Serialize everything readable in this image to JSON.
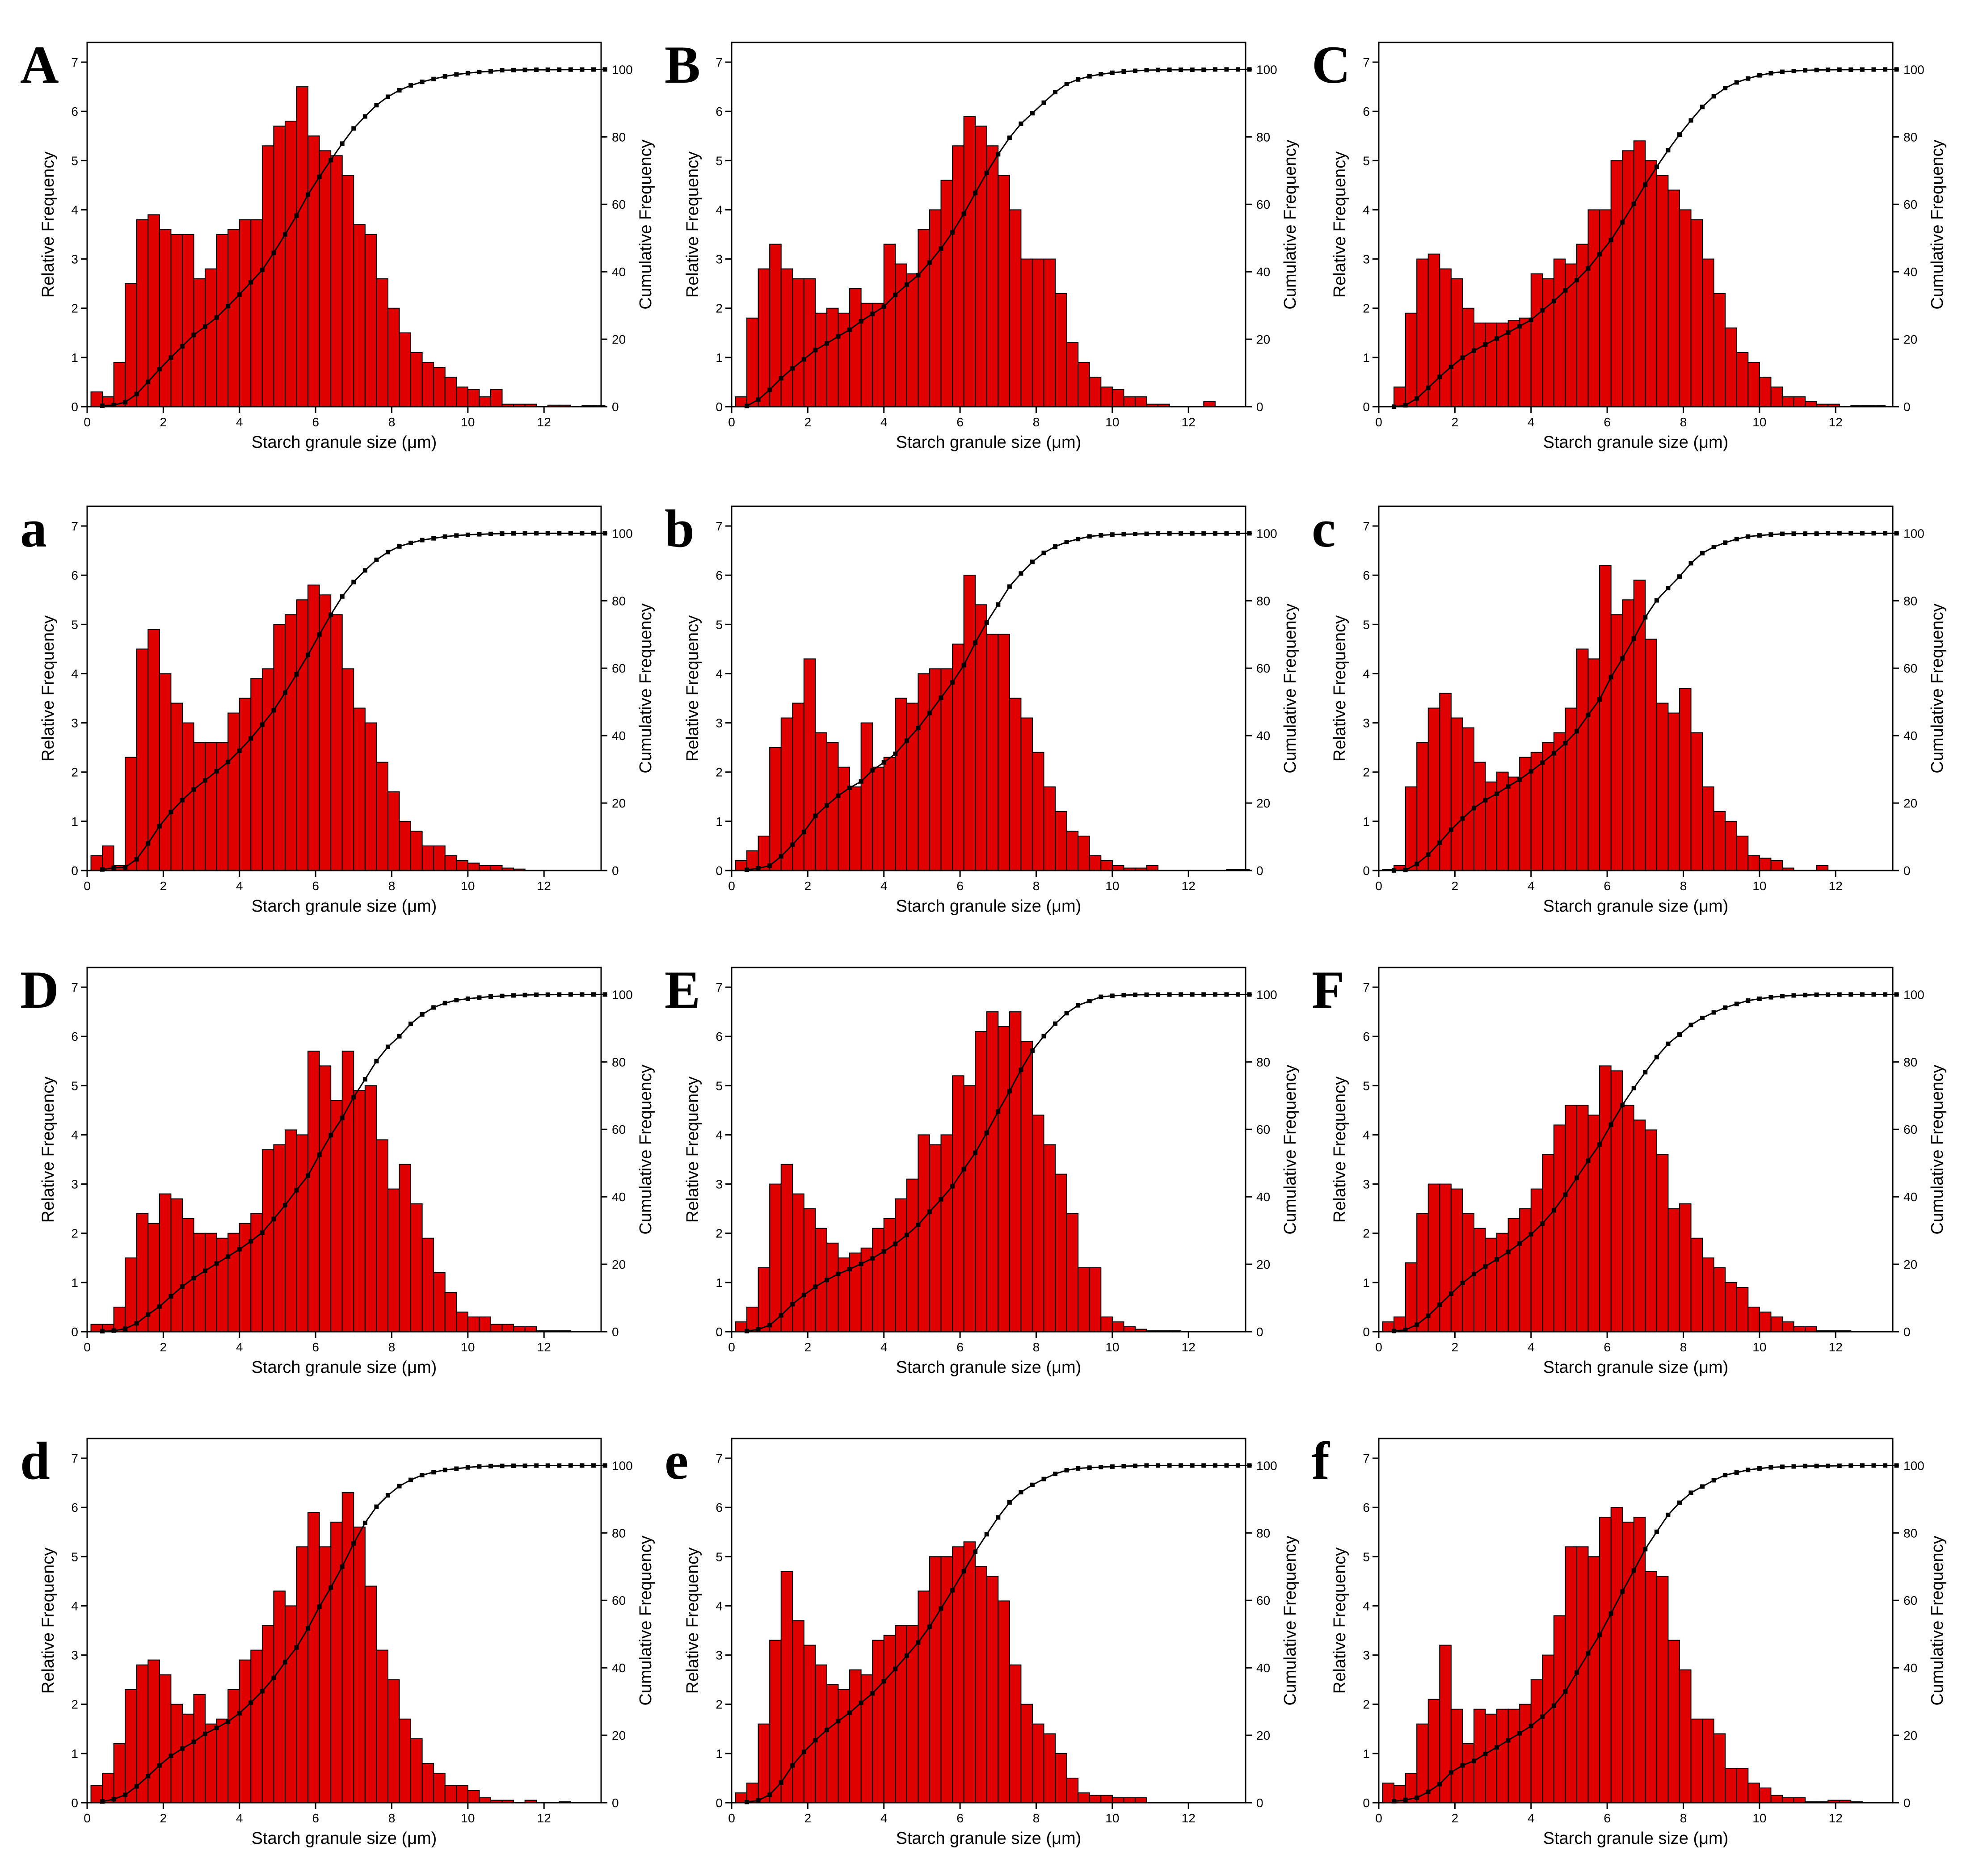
{
  "figure": {
    "x_axis_label": "Starch granule size (μm)",
    "y_left_label": "Relative Frequency",
    "y_right_label": "Cumulative Frequency",
    "colors": {
      "bar_fill": "#e00000",
      "bar_stroke": "#000000",
      "line": "#000000",
      "marker": "#000000"
    }
  },
  "chart_data": [
    {
      "panel": "A",
      "type": "bar",
      "x_ticks": [
        0,
        2,
        4,
        6,
        8,
        10,
        12
      ],
      "y_ticks": [
        0,
        1,
        2,
        3,
        4,
        5,
        6,
        7
      ],
      "y2_ticks": [
        0,
        20,
        40,
        60,
        80,
        100
      ],
      "xlim": [
        0,
        13.5
      ],
      "ylim": [
        0,
        7.4
      ],
      "y2lim": [
        0,
        108
      ],
      "bin_start": 0.1,
      "bin_width": 0.3,
      "values": [
        0.3,
        0.2,
        0.9,
        2.5,
        3.8,
        3.9,
        3.6,
        3.5,
        3.5,
        2.6,
        2.8,
        3.5,
        3.6,
        3.8,
        3.8,
        5.3,
        5.7,
        5.8,
        6.5,
        5.5,
        5.2,
        5.1,
        4.7,
        3.7,
        3.5,
        2.6,
        2.0,
        1.5,
        1.1,
        0.9,
        0.8,
        0.6,
        0.4,
        0.35,
        0.2,
        0.35,
        0.05,
        0.05,
        0.05,
        0,
        0.03,
        0.03,
        0,
        0.02,
        0.02
      ],
      "cumulative_end": 100
    },
    {
      "panel": "B",
      "type": "bar",
      "x_ticks": [
        0,
        2,
        4,
        6,
        8,
        10,
        12
      ],
      "y_ticks": [
        0,
        1,
        2,
        3,
        4,
        5,
        6,
        7
      ],
      "y2_ticks": [
        0,
        20,
        40,
        60,
        80,
        100
      ],
      "xlim": [
        0,
        13.5
      ],
      "ylim": [
        0,
        7.4
      ],
      "y2lim": [
        0,
        108
      ],
      "bin_start": 0.1,
      "bin_width": 0.3,
      "values": [
        0.2,
        1.8,
        2.8,
        3.3,
        2.8,
        2.6,
        2.6,
        1.9,
        2.0,
        1.9,
        2.4,
        2.1,
        2.1,
        3.3,
        2.9,
        2.7,
        3.6,
        4.0,
        4.6,
        5.3,
        5.9,
        5.7,
        5.3,
        4.7,
        4.0,
        3.0,
        3.0,
        3.0,
        2.3,
        1.3,
        0.9,
        0.6,
        0.4,
        0.35,
        0.2,
        0.2,
        0.05,
        0.05,
        0,
        0,
        0,
        0.1,
        0,
        0,
        0
      ],
      "cumulative_end": 100
    },
    {
      "panel": "C",
      "type": "bar",
      "x_ticks": [
        0,
        2,
        4,
        6,
        8,
        10,
        12
      ],
      "y_ticks": [
        0,
        1,
        2,
        3,
        4,
        5,
        6,
        7
      ],
      "y2_ticks": [
        0,
        20,
        40,
        60,
        80,
        100
      ],
      "xlim": [
        0,
        13.5
      ],
      "ylim": [
        0,
        7.4
      ],
      "y2lim": [
        0,
        108
      ],
      "bin_start": 0.1,
      "bin_width": 0.3,
      "values": [
        0,
        0.4,
        1.9,
        3.0,
        3.1,
        2.8,
        2.6,
        2.0,
        1.7,
        1.7,
        1.7,
        1.75,
        1.8,
        2.7,
        2.6,
        3.0,
        2.9,
        3.3,
        4.0,
        4.0,
        5.0,
        5.2,
        5.4,
        5.0,
        4.7,
        4.4,
        4.0,
        3.8,
        3.0,
        2.3,
        1.6,
        1.1,
        0.9,
        0.6,
        0.4,
        0.2,
        0.2,
        0.1,
        0.05,
        0.05,
        0,
        0.02,
        0.02,
        0.02,
        0
      ],
      "cumulative_end": 100
    },
    {
      "panel": "a",
      "type": "bar",
      "x_ticks": [
        0,
        2,
        4,
        6,
        8,
        10,
        12
      ],
      "y_ticks": [
        0,
        1,
        2,
        3,
        4,
        5,
        6,
        7
      ],
      "y2_ticks": [
        0,
        20,
        40,
        60,
        80,
        100
      ],
      "xlim": [
        0,
        13.5
      ],
      "ylim": [
        0,
        7.4
      ],
      "y2lim": [
        0,
        108
      ],
      "bin_start": 0.1,
      "bin_width": 0.3,
      "values": [
        0.3,
        0.5,
        0.1,
        2.3,
        4.5,
        4.9,
        4.0,
        3.4,
        3.0,
        2.6,
        2.6,
        2.6,
        3.2,
        3.5,
        3.9,
        4.1,
        5.0,
        5.2,
        5.5,
        5.8,
        5.6,
        5.2,
        4.1,
        3.3,
        3.0,
        2.2,
        1.6,
        1.0,
        0.8,
        0.5,
        0.5,
        0.3,
        0.2,
        0.15,
        0.1,
        0.1,
        0.05,
        0.03,
        0,
        0,
        0,
        0,
        0,
        0,
        0
      ],
      "cumulative_end": 100
    },
    {
      "panel": "b",
      "type": "bar",
      "x_ticks": [
        0,
        2,
        4,
        6,
        8,
        10,
        12
      ],
      "y_ticks": [
        0,
        1,
        2,
        3,
        4,
        5,
        6,
        7
      ],
      "y2_ticks": [
        0,
        20,
        40,
        60,
        80,
        100
      ],
      "xlim": [
        0,
        13.5
      ],
      "ylim": [
        0,
        7.4
      ],
      "y2lim": [
        0,
        108
      ],
      "bin_start": 0.1,
      "bin_width": 0.3,
      "values": [
        0.2,
        0.4,
        0.7,
        2.5,
        3.1,
        3.4,
        4.3,
        2.8,
        2.6,
        2.1,
        1.7,
        3.0,
        2.1,
        2.3,
        3.5,
        3.4,
        4.0,
        4.1,
        4.1,
        4.6,
        6.0,
        5.4,
        4.8,
        4.8,
        3.5,
        3.1,
        2.4,
        1.7,
        1.2,
        0.8,
        0.7,
        0.3,
        0.2,
        0.1,
        0.05,
        0.05,
        0.1,
        0,
        0,
        0,
        0,
        0,
        0,
        0.02,
        0.02
      ],
      "cumulative_end": 100
    },
    {
      "panel": "c",
      "type": "bar",
      "x_ticks": [
        0,
        2,
        4,
        6,
        8,
        10,
        12
      ],
      "y_ticks": [
        0,
        1,
        2,
        3,
        4,
        5,
        6,
        7
      ],
      "y2_ticks": [
        0,
        20,
        40,
        60,
        80,
        100
      ],
      "xlim": [
        0,
        13.5
      ],
      "ylim": [
        0,
        7.4
      ],
      "y2lim": [
        0,
        108
      ],
      "bin_start": 0.1,
      "bin_width": 0.3,
      "values": [
        0.02,
        0.1,
        1.7,
        2.6,
        3.3,
        3.6,
        3.1,
        2.9,
        2.2,
        1.8,
        2.0,
        1.9,
        2.3,
        2.4,
        2.6,
        2.8,
        3.3,
        4.5,
        4.3,
        6.2,
        5.2,
        5.5,
        5.9,
        4.7,
        3.4,
        3.2,
        3.7,
        2.8,
        1.7,
        1.2,
        1.0,
        0.7,
        0.3,
        0.25,
        0.2,
        0.05,
        0,
        0,
        0.1,
        0,
        0,
        0,
        0,
        0,
        0
      ],
      "cumulative_end": 100
    },
    {
      "panel": "D",
      "type": "bar",
      "x_ticks": [
        0,
        2,
        4,
        6,
        8,
        10,
        12
      ],
      "y_ticks": [
        0,
        1,
        2,
        3,
        4,
        5,
        6,
        7
      ],
      "y2_ticks": [
        0,
        20,
        40,
        60,
        80,
        100
      ],
      "xlim": [
        0,
        13.5
      ],
      "ylim": [
        0,
        7.4
      ],
      "y2lim": [
        0,
        108
      ],
      "bin_start": 0.1,
      "bin_width": 0.3,
      "values": [
        0.15,
        0.15,
        0.5,
        1.5,
        2.4,
        2.2,
        2.8,
        2.7,
        2.3,
        2.0,
        2.0,
        1.9,
        2.0,
        2.2,
        2.4,
        3.7,
        3.8,
        4.1,
        4.0,
        5.7,
        5.4,
        4.7,
        5.7,
        4.9,
        5.0,
        3.9,
        2.9,
        3.4,
        2.6,
        1.9,
        1.2,
        0.8,
        0.4,
        0.3,
        0.3,
        0.15,
        0.15,
        0.1,
        0.1,
        0.02,
        0.02,
        0.02,
        0,
        0,
        0
      ],
      "cumulative_end": 100
    },
    {
      "panel": "E",
      "type": "bar",
      "x_ticks": [
        0,
        2,
        4,
        6,
        8,
        10,
        12
      ],
      "y_ticks": [
        0,
        1,
        2,
        3,
        4,
        5,
        6,
        7
      ],
      "y2_ticks": [
        0,
        20,
        40,
        60,
        80,
        100
      ],
      "xlim": [
        0,
        13.5
      ],
      "ylim": [
        0,
        7.4
      ],
      "y2lim": [
        0,
        108
      ],
      "bin_start": 0.1,
      "bin_width": 0.3,
      "values": [
        0.2,
        0.5,
        1.3,
        3.0,
        3.4,
        2.8,
        2.5,
        2.1,
        1.8,
        1.5,
        1.6,
        1.7,
        2.1,
        2.3,
        2.7,
        3.1,
        4.0,
        3.8,
        4.0,
        5.2,
        5.0,
        6.1,
        6.5,
        6.2,
        6.5,
        5.9,
        4.4,
        3.8,
        3.2,
        2.4,
        1.3,
        1.3,
        0.3,
        0.2,
        0.1,
        0.05,
        0.02,
        0.02,
        0.02,
        0,
        0,
        0,
        0,
        0,
        0
      ],
      "cumulative_end": 100
    },
    {
      "panel": "F",
      "type": "bar",
      "x_ticks": [
        0,
        2,
        4,
        6,
        8,
        10,
        12
      ],
      "y_ticks": [
        0,
        1,
        2,
        3,
        4,
        5,
        6,
        7
      ],
      "y2_ticks": [
        0,
        20,
        40,
        60,
        80,
        100
      ],
      "xlim": [
        0,
        13.5
      ],
      "ylim": [
        0,
        7.4
      ],
      "y2lim": [
        0,
        108
      ],
      "bin_start": 0.1,
      "bin_width": 0.3,
      "values": [
        0.2,
        0.3,
        1.4,
        2.4,
        3.0,
        3.0,
        2.9,
        2.4,
        2.1,
        1.9,
        2.0,
        2.3,
        2.5,
        2.9,
        3.6,
        4.2,
        4.6,
        4.6,
        4.4,
        5.4,
        5.3,
        4.6,
        4.3,
        4.1,
        3.6,
        2.5,
        2.6,
        1.9,
        1.5,
        1.3,
        1.0,
        0.9,
        0.5,
        0.4,
        0.3,
        0.2,
        0.1,
        0.1,
        0.02,
        0.02,
        0.02,
        0,
        0,
        0,
        0
      ],
      "cumulative_end": 100
    },
    {
      "panel": "d",
      "type": "bar",
      "x_ticks": [
        0,
        2,
        4,
        6,
        8,
        10,
        12
      ],
      "y_ticks": [
        0,
        1,
        2,
        3,
        4,
        5,
        6,
        7
      ],
      "y2_ticks": [
        0,
        20,
        40,
        60,
        80,
        100
      ],
      "xlim": [
        0,
        13.5
      ],
      "ylim": [
        0,
        7.4
      ],
      "y2lim": [
        0,
        108
      ],
      "bin_start": 0.1,
      "bin_width": 0.3,
      "values": [
        0.35,
        0.6,
        1.2,
        2.3,
        2.8,
        2.9,
        2.6,
        2.0,
        1.8,
        2.2,
        1.6,
        1.7,
        2.3,
        2.9,
        3.1,
        3.6,
        4.3,
        4.0,
        5.2,
        5.9,
        5.2,
        5.7,
        6.3,
        5.6,
        4.4,
        3.1,
        2.5,
        1.7,
        1.3,
        0.8,
        0.6,
        0.35,
        0.35,
        0.25,
        0.1,
        0.05,
        0.05,
        0,
        0.05,
        0,
        0,
        0.02,
        0,
        0,
        0
      ],
      "cumulative_end": 100
    },
    {
      "panel": "e",
      "type": "bar",
      "x_ticks": [
        0,
        2,
        4,
        6,
        8,
        10,
        12
      ],
      "y_ticks": [
        0,
        1,
        2,
        3,
        4,
        5,
        6,
        7
      ],
      "y2_ticks": [
        0,
        20,
        40,
        60,
        80,
        100
      ],
      "xlim": [
        0,
        13.5
      ],
      "ylim": [
        0,
        7.4
      ],
      "y2lim": [
        0,
        108
      ],
      "bin_start": 0.1,
      "bin_width": 0.3,
      "values": [
        0.2,
        0.4,
        1.6,
        3.3,
        4.7,
        3.7,
        3.2,
        2.8,
        2.4,
        2.3,
        2.7,
        2.6,
        3.3,
        3.4,
        3.6,
        3.6,
        4.3,
        5.0,
        5.0,
        5.2,
        5.3,
        4.8,
        4.6,
        4.1,
        2.8,
        2.0,
        1.6,
        1.4,
        1.0,
        0.5,
        0.2,
        0.15,
        0.15,
        0.1,
        0.1,
        0.1,
        0,
        0,
        0,
        0,
        0,
        0,
        0,
        0,
        0
      ],
      "cumulative_end": 100
    },
    {
      "panel": "f",
      "type": "bar",
      "x_ticks": [
        0,
        2,
        4,
        6,
        8,
        10,
        12
      ],
      "y_ticks": [
        0,
        1,
        2,
        3,
        4,
        5,
        6,
        7
      ],
      "y2_ticks": [
        0,
        20,
        40,
        60,
        80,
        100
      ],
      "xlim": [
        0,
        13.5
      ],
      "ylim": [
        0,
        7.4
      ],
      "y2lim": [
        0,
        108
      ],
      "bin_start": 0.1,
      "bin_width": 0.3,
      "values": [
        0.4,
        0.35,
        0.6,
        1.6,
        2.1,
        3.2,
        1.9,
        1.2,
        1.9,
        1.8,
        1.9,
        1.9,
        2.0,
        2.5,
        3.0,
        3.8,
        5.2,
        5.2,
        5.0,
        5.8,
        6.0,
        5.7,
        5.8,
        4.7,
        4.6,
        3.3,
        2.7,
        1.7,
        1.7,
        1.4,
        0.7,
        0.7,
        0.4,
        0.3,
        0.15,
        0.1,
        0.1,
        0.02,
        0.02,
        0.05,
        0.05,
        0.02,
        0,
        0,
        0
      ],
      "cumulative_end": 100
    }
  ]
}
